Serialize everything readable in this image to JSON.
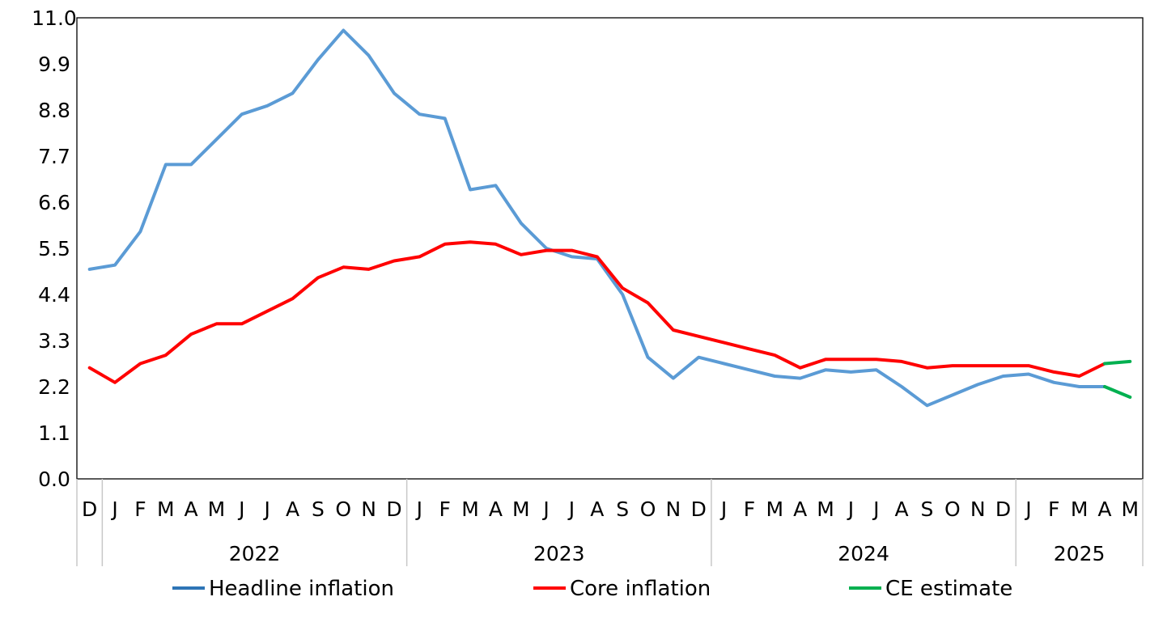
{
  "chart_data": {
    "type": "line",
    "categories": [
      {
        "month": "D",
        "year": ""
      },
      {
        "month": "J",
        "year": "2022"
      },
      {
        "month": "F",
        "year": "2022"
      },
      {
        "month": "M",
        "year": "2022"
      },
      {
        "month": "A",
        "year": "2022"
      },
      {
        "month": "M",
        "year": "2022"
      },
      {
        "month": "J",
        "year": "2022"
      },
      {
        "month": "J",
        "year": "2022"
      },
      {
        "month": "A",
        "year": "2022"
      },
      {
        "month": "S",
        "year": "2022"
      },
      {
        "month": "O",
        "year": "2022"
      },
      {
        "month": "N",
        "year": "2022"
      },
      {
        "month": "D",
        "year": "2022"
      },
      {
        "month": "J",
        "year": "2023"
      },
      {
        "month": "F",
        "year": "2023"
      },
      {
        "month": "M",
        "year": "2023"
      },
      {
        "month": "A",
        "year": "2023"
      },
      {
        "month": "M",
        "year": "2023"
      },
      {
        "month": "J",
        "year": "2023"
      },
      {
        "month": "J",
        "year": "2023"
      },
      {
        "month": "A",
        "year": "2023"
      },
      {
        "month": "S",
        "year": "2023"
      },
      {
        "month": "O",
        "year": "2023"
      },
      {
        "month": "N",
        "year": "2023"
      },
      {
        "month": "D",
        "year": "2023"
      },
      {
        "month": "J",
        "year": "2024"
      },
      {
        "month": "F",
        "year": "2024"
      },
      {
        "month": "M",
        "year": "2024"
      },
      {
        "month": "A",
        "year": "2024"
      },
      {
        "month": "M",
        "year": "2024"
      },
      {
        "month": "J",
        "year": "2024"
      },
      {
        "month": "J",
        "year": "2024"
      },
      {
        "month": "A",
        "year": "2024"
      },
      {
        "month": "S",
        "year": "2024"
      },
      {
        "month": "O",
        "year": "2024"
      },
      {
        "month": "N",
        "year": "2024"
      },
      {
        "month": "D",
        "year": "2024"
      },
      {
        "month": "J",
        "year": "2025"
      },
      {
        "month": "F",
        "year": "2025"
      },
      {
        "month": "M",
        "year": "2025"
      },
      {
        "month": "A",
        "year": "2025"
      },
      {
        "month": "M",
        "year": "2025"
      }
    ],
    "year_groups": [
      {
        "label": "2022",
        "start": 1,
        "end": 12
      },
      {
        "label": "2023",
        "start": 13,
        "end": 24
      },
      {
        "label": "2024",
        "start": 25,
        "end": 36
      },
      {
        "label": "2025",
        "start": 37,
        "end": 41
      }
    ],
    "y_ticks": [
      "0.0",
      "1.1",
      "2.2",
      "3.3",
      "4.4",
      "5.5",
      "6.6",
      "7.7",
      "8.8",
      "9.9",
      "11.0"
    ],
    "ylim": [
      0,
      11
    ],
    "title": "",
    "xlabel": "",
    "ylabel": "",
    "grid": false,
    "legend_position": "bottom",
    "series": [
      {
        "name": "Headline inflation",
        "color": "#5B9BD5",
        "legend_color": "#2E75B6",
        "values": [
          5.0,
          5.1,
          5.9,
          7.5,
          7.5,
          8.1,
          8.7,
          8.9,
          9.2,
          10.0,
          10.7,
          10.1,
          9.2,
          8.7,
          8.6,
          6.9,
          7.0,
          6.1,
          5.5,
          5.3,
          5.25,
          4.4,
          2.9,
          2.4,
          2.9,
          2.75,
          2.6,
          2.45,
          2.4,
          2.6,
          2.55,
          2.6,
          2.2,
          1.75,
          2.0,
          2.25,
          2.45,
          2.5,
          2.3,
          2.2,
          2.2,
          null
        ]
      },
      {
        "name": "Core inflation",
        "color": "#FF0000",
        "legend_color": "#FF0000",
        "values": [
          2.65,
          2.3,
          2.75,
          2.95,
          3.45,
          3.7,
          3.7,
          4.0,
          4.3,
          4.8,
          5.05,
          5.0,
          5.2,
          5.3,
          5.6,
          5.65,
          5.6,
          5.35,
          5.45,
          5.45,
          5.3,
          4.55,
          4.2,
          3.55,
          3.4,
          3.25,
          3.1,
          2.95,
          2.65,
          2.85,
          2.85,
          2.85,
          2.8,
          2.65,
          2.7,
          2.7,
          2.7,
          2.7,
          2.55,
          2.45,
          2.75,
          null
        ]
      },
      {
        "name": "CE estimate",
        "color": "#00B050",
        "legend_color": "#00B050",
        "segments": [
          [
            [
              40,
              2.2
            ],
            [
              41,
              1.95
            ]
          ],
          [
            [
              40,
              2.75
            ],
            [
              41,
              2.8
            ]
          ]
        ]
      }
    ]
  }
}
